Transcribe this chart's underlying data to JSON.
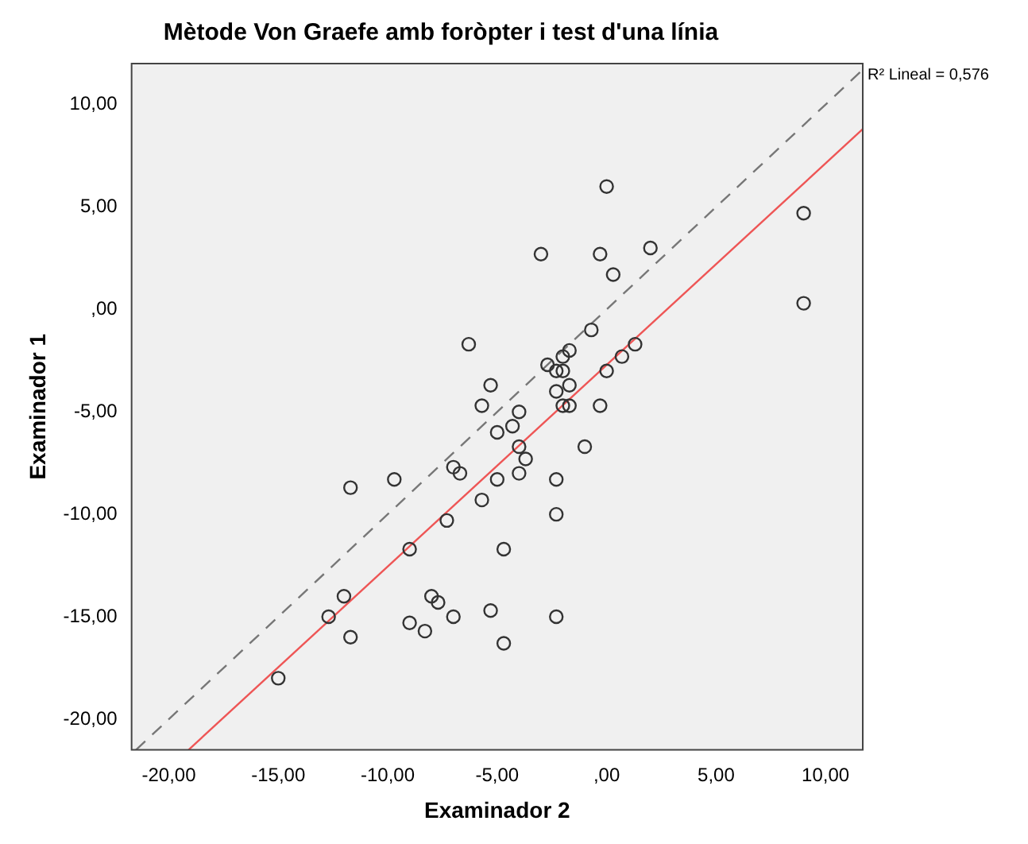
{
  "chart_data": {
    "type": "scatter",
    "title": "Mètode Von Graefe amb foròpter i test d'una línia",
    "xlabel": "Examinador 2",
    "ylabel": "Examinador 1",
    "xlim": [
      -21.7,
      11.7
    ],
    "ylim": [
      -21.5,
      12
    ],
    "xticks": [
      {
        "value": -20,
        "label": "-20,00"
      },
      {
        "value": -15,
        "label": "-15,00"
      },
      {
        "value": -10,
        "label": "-10,00"
      },
      {
        "value": -5,
        "label": "-5,00"
      },
      {
        "value": 0,
        "label": ",00"
      },
      {
        "value": 5,
        "label": "5,00"
      },
      {
        "value": 10,
        "label": "10,00"
      }
    ],
    "yticks": [
      {
        "value": -20,
        "label": "-20,00"
      },
      {
        "value": -15,
        "label": "-15,00"
      },
      {
        "value": -10,
        "label": "-10,00"
      },
      {
        "value": -5,
        "label": "-5,00"
      },
      {
        "value": 0,
        "label": ",00"
      },
      {
        "value": 5,
        "label": "5,00"
      },
      {
        "value": 10,
        "label": "10,00"
      }
    ],
    "grid": false,
    "legend": false,
    "annotations": [
      "R² Lineal = 0,576"
    ],
    "series": [
      {
        "type": "scatter",
        "color": "#333333",
        "marker": "circle",
        "x": [
          0,
          9,
          -3,
          -0.3,
          2,
          0.3,
          9,
          -6.3,
          -0.7,
          1.3,
          0.7,
          -1.7,
          -2,
          -2.7,
          -2.3,
          -2,
          0,
          -1.7,
          -5.3,
          -2.3,
          -5.7,
          -2,
          -1.7,
          -0.3,
          -4,
          -5,
          -4.3,
          -4,
          -1,
          -3.7,
          -7,
          -6.7,
          -4,
          -9.7,
          -5,
          -2.3,
          -11.7,
          -5.7,
          -2.3,
          -7.3,
          -9,
          -4.7,
          -12,
          -8,
          -7.7,
          -5.3,
          -12.7,
          -7,
          -2.3,
          -9,
          -8.3,
          -11.7,
          -4.7,
          -15
        ],
        "values": [
          6,
          4.7,
          2.7,
          2.7,
          3,
          1.7,
          0.3,
          -1.7,
          -1,
          -1.7,
          -2.3,
          -2,
          -2.3,
          -2.7,
          -3,
          -3,
          -3,
          -3.7,
          -3.7,
          -4,
          -4.7,
          -4.7,
          -4.7,
          -4.7,
          -5,
          -6,
          -5.7,
          -6.7,
          -6.7,
          -7.3,
          -7.7,
          -8,
          -8,
          -8.3,
          -8.3,
          -8.3,
          -8.7,
          -9.3,
          -10,
          -10.3,
          -11.7,
          -11.7,
          -14,
          -14,
          -14.3,
          -14.7,
          -15,
          -15,
          -15,
          -15.3,
          -15.7,
          -16,
          -16.3,
          -18
        ]
      },
      {
        "type": "line",
        "color": "#ee5555",
        "marker": "none",
        "line_style": "solid",
        "x": [
          -19.1,
          11.7
        ],
        "values": [
          -21.5,
          8.8
        ]
      },
      {
        "type": "line",
        "color": "#777777",
        "marker": "none",
        "line_style": "dashed",
        "x": [
          -21.5,
          11.7
        ],
        "values": [
          -21.5,
          11.7
        ]
      }
    ]
  }
}
